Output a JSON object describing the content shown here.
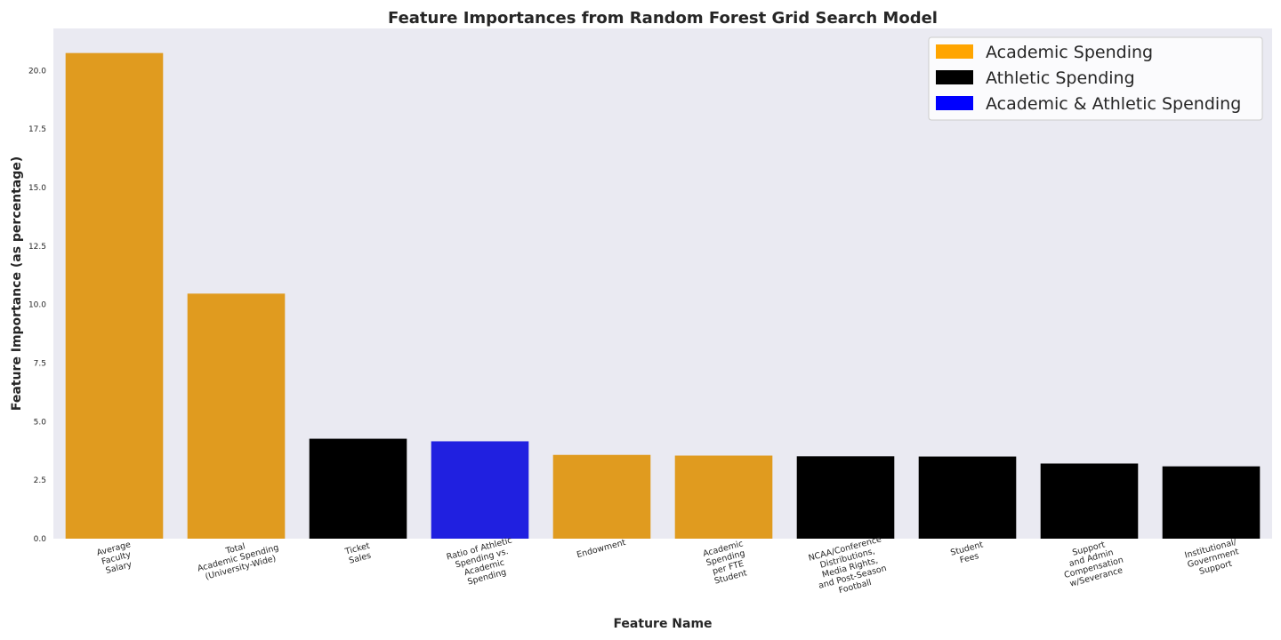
{
  "chart_data": {
    "type": "bar",
    "title": "Feature Importances from Random Forest Grid Search Model",
    "xlabel": "Feature Name",
    "ylabel": "Feature Importance (as percentage)",
    "ylim": [
      0,
      21.8
    ],
    "yticks": [
      "0.0",
      "2.5",
      "5.0",
      "7.5",
      "10.0",
      "12.5",
      "15.0",
      "17.5",
      "20.0"
    ],
    "grid": false,
    "legend_position": "top-right",
    "categories": [
      [
        "Average",
        "Faculty",
        "Salary"
      ],
      [
        "Total",
        "Academic Spending",
        "(University-Wide)"
      ],
      [
        "Ticket",
        "Sales"
      ],
      [
        "Ratio of Athletic",
        "Spending vs.",
        "Academic",
        "Spending"
      ],
      [
        "Endowment"
      ],
      [
        "Academic",
        "Spending",
        "per FTE",
        "Student"
      ],
      [
        "NCAA/Conference",
        "Distributions,",
        "Media Rights,",
        "and Post-Season",
        "Football"
      ],
      [
        "Student",
        "Fees"
      ],
      [
        "Support",
        "and Admin",
        "Compensation",
        "w/Severance"
      ],
      [
        "Institutional/",
        "Government",
        "Support"
      ]
    ],
    "values": [
      20.75,
      10.47,
      4.27,
      4.16,
      3.58,
      3.55,
      3.52,
      3.51,
      3.21,
      3.09
    ],
    "groups": [
      "Academic",
      "Academic",
      "Athletic",
      "Both",
      "Academic",
      "Academic",
      "Athletic",
      "Athletic",
      "Athletic",
      "Athletic"
    ],
    "bar_colors": {
      "Academic": "#e09b1f",
      "Athletic": "#000000",
      "Both": "#2020e0"
    },
    "legend": [
      {
        "label": "Academic Spending",
        "color": "#ffa500"
      },
      {
        "label": "Athletic Spending",
        "color": "#000000"
      },
      {
        "label": "Academic & Athletic Spending",
        "color": "#0000ff"
      }
    ],
    "plot_background": "#eaeaf2"
  }
}
